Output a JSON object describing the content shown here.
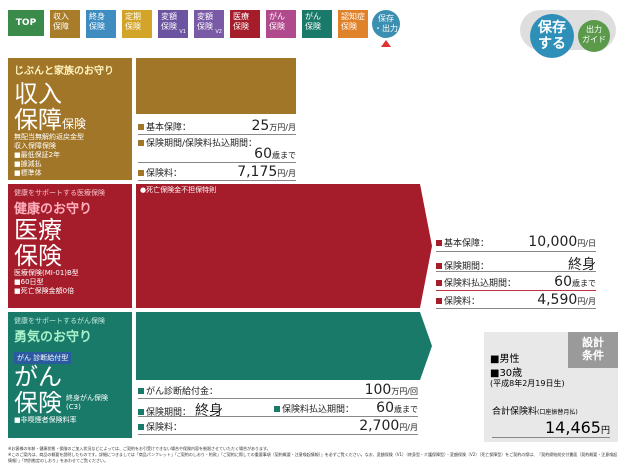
{
  "nav": {
    "top": "TOP",
    "tabs": [
      {
        "label": "収入\n保障",
        "color": "#a87c28",
        "sub": ""
      },
      {
        "label": "終身\n保険",
        "color": "#3f8dc0",
        "sub": ""
      },
      {
        "label": "定期\n保険",
        "color": "#d2a42a",
        "sub": ""
      },
      {
        "label": "変額\n保険",
        "color": "#6b54a0",
        "sub": "V1"
      },
      {
        "label": "変額\n保険",
        "color": "#7a5aa6",
        "sub": "V2"
      },
      {
        "label": "医療\n保険",
        "color": "#a51d2b",
        "sub": ""
      },
      {
        "label": "がん\n保険",
        "color": "#b04a8c",
        "sub": ""
      },
      {
        "label": "がん\n保険",
        "color": "#1a7a6a",
        "sub": ""
      },
      {
        "label": "認知症\n保険",
        "color": "#e0822a",
        "sub": ""
      }
    ],
    "save_small": "保存\n・出力",
    "save_big": "保存\nする",
    "guide": "出力\nガイド"
  },
  "income": {
    "tag": "じぶんと家族のお守り",
    "title1": "収入",
    "title2": "保障",
    "title_suffix": "保険",
    "desc": "無配当無解約返戻金型\n収入保障保険",
    "opts": [
      "■最低保証2年",
      "■據減払",
      "■標準体"
    ],
    "rows": [
      {
        "label": "基本保障：",
        "value": "25",
        "unit": "万円/月"
      },
      {
        "label": "保険期間/保険料払込期間：",
        "value": "60",
        "unit": "歳まで"
      },
      {
        "label": "保険料：",
        "value": "7,175",
        "unit": "円/月"
      }
    ]
  },
  "medical": {
    "tag": "健康をサポートする医療保険",
    "subtitle": "健康のお守り",
    "title1": "医療",
    "title2": "保険",
    "model": "医療保険(MI-01)B型",
    "opts": [
      "■60日型",
      "■死亡保険金額0倍"
    ],
    "note": "●死亡保険金不担保特則",
    "rows": [
      {
        "label": "基本保障：",
        "value": "10,000",
        "unit": "円/日"
      },
      {
        "label": "保険期間：",
        "value": "終身",
        "unit": ""
      },
      {
        "label": "保険料払込期間：",
        "value": "60",
        "unit": "歳まで"
      },
      {
        "label": "保険料：",
        "value": "4,590",
        "unit": "円/月"
      }
    ]
  },
  "cancer": {
    "tag": "健康をサポートするがん保険",
    "subtitle": "勇気のお守り",
    "badge": "がん 診断給付型",
    "title1": "がん",
    "title2": "保険",
    "model": "終身がん保険\n(C3)",
    "opts": [
      "■非喫煙者保険料率"
    ],
    "rows": [
      {
        "label": "がん診断給付金：",
        "value": "100",
        "unit": "万円/回"
      },
      {
        "label": "保険期間：",
        "value": "終身",
        "unit": ""
      },
      {
        "label": "保険料払込期間：",
        "value": "60",
        "unit": "歳まで"
      },
      {
        "label": "保険料：",
        "value": "2,700",
        "unit": "円/月"
      }
    ]
  },
  "summary": {
    "badge": "設計\n条件",
    "gender": "■男性",
    "age": "■30歳",
    "birth": "(平成8年2月19日生)",
    "total_label": "合計保険料",
    "total_note": "(口座振替月払)",
    "total_value": "14,465",
    "total_unit": "円"
  },
  "footnote": "※お客様の年齢・健康状態・保険のご加入状況などによっては、ご契約をお引受けできない場合や保険内容を制限させていただく場合があります。\n※このご案内は、商品の概要を説明したものです。詳細につきましては「商品パンフレット」「ご契約のしおり・約款」「ご契約に際しての重要事項（契約概要・注意喚起情報）」を必ずご覧ください。なお、変額保険（V1）（終身型・介護保障型）・変額保険（V2）（死亡保障型）をご契約の際は、「契約締結前交付書面（契約概要・注意喚起情報）」「特別勘定のしおり」をあわせてご覧ください。"
}
